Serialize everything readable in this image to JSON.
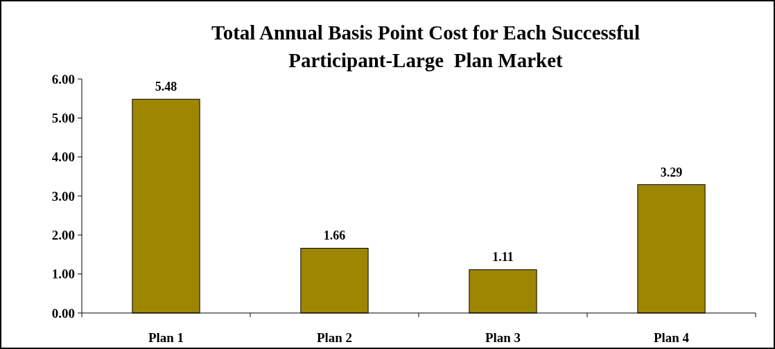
{
  "chart_data": {
    "type": "bar",
    "title": "Total Annual Basis Point Cost for Each Successful\nParticipant-Large  Plan Market",
    "categories": [
      "Plan 1",
      "Plan 2",
      "Plan 3",
      "Plan 4"
    ],
    "values": [
      5.48,
      1.66,
      1.11,
      3.29
    ],
    "color": "#9e8600",
    "ylim": [
      0,
      6
    ],
    "yticks": [
      {
        "value": 0,
        "label": "0.00"
      },
      {
        "value": 1,
        "label": "1.00"
      },
      {
        "value": 2,
        "label": "2.00"
      },
      {
        "value": 3,
        "label": "3.00"
      },
      {
        "value": 4,
        "label": "4.00"
      },
      {
        "value": 5,
        "label": "5.00"
      },
      {
        "value": 6,
        "label": "6.00"
      }
    ],
    "data_labels": true
  }
}
